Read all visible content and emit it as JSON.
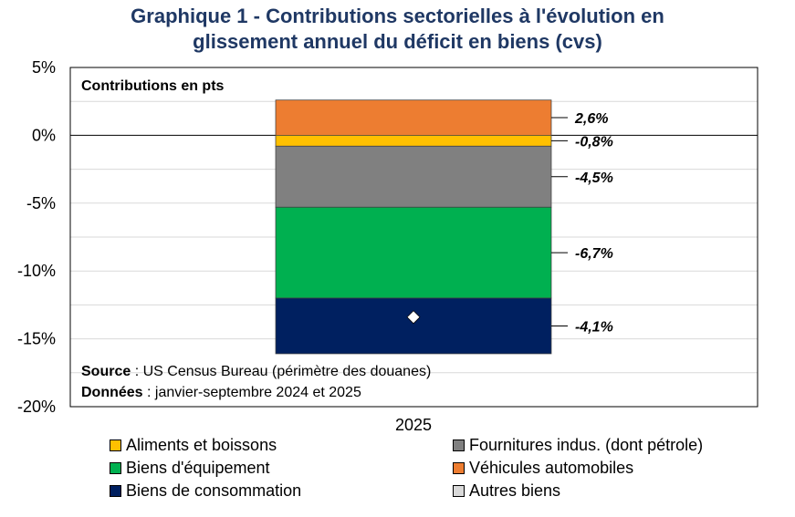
{
  "title_line1": "Graphique 1 - Contributions sectorielles à l'évolution en",
  "title_line2": "glissement annuel du déficit en biens (cvs)",
  "chart_data": {
    "type": "bar",
    "stacked": true,
    "categories": [
      "2025"
    ],
    "inner_label": "Contributions en pts",
    "ylim": [
      -20,
      5
    ],
    "yticks": [
      5,
      0,
      -5,
      -10,
      -15,
      -20
    ],
    "ytick_labels": [
      "5%",
      "0%",
      "-5%",
      "-10%",
      "-15%",
      "-20%"
    ],
    "grid": true,
    "series": [
      {
        "name": "Véhicules automobiles",
        "values": [
          2.6
        ],
        "label": "2,6%",
        "color": "#ed7d31"
      },
      {
        "name": "Aliments et boissons",
        "values": [
          -0.8
        ],
        "label": "-0,8%",
        "color": "#ffc000"
      },
      {
        "name": "Fournitures indus. (dont pétrole)",
        "values": [
          -4.5
        ],
        "label": "-4,5%",
        "color": "#808080"
      },
      {
        "name": "Biens d'équipement",
        "values": [
          -6.7
        ],
        "label": "-6,7%",
        "color": "#00b050"
      },
      {
        "name": "Biens de consommation",
        "values": [
          -4.1
        ],
        "label": "-4,1%",
        "color": "#002060"
      },
      {
        "name": "Autres biens",
        "values": [
          0
        ],
        "label": "",
        "color": "#d9d9d9"
      }
    ],
    "total": -13.4,
    "legend_position": "bottom"
  },
  "source_label": "Source",
  "source_text": " : US Census Bureau (périmètre des douanes)",
  "data_label": "Données",
  "data_text": " : janvier-septembre 2024 et 2025",
  "legend": [
    {
      "label": "Aliments et boissons",
      "color": "#ffc000"
    },
    {
      "label": "Fournitures indus. (dont pétrole)",
      "color": "#808080"
    },
    {
      "label": "Biens d'équipement",
      "color": "#00b050"
    },
    {
      "label": "Véhicules automobiles",
      "color": "#ed7d31"
    },
    {
      "label": "Biens de consommation",
      "color": "#002060"
    },
    {
      "label": "Autres biens",
      "color": "#d9d9d9"
    }
  ]
}
